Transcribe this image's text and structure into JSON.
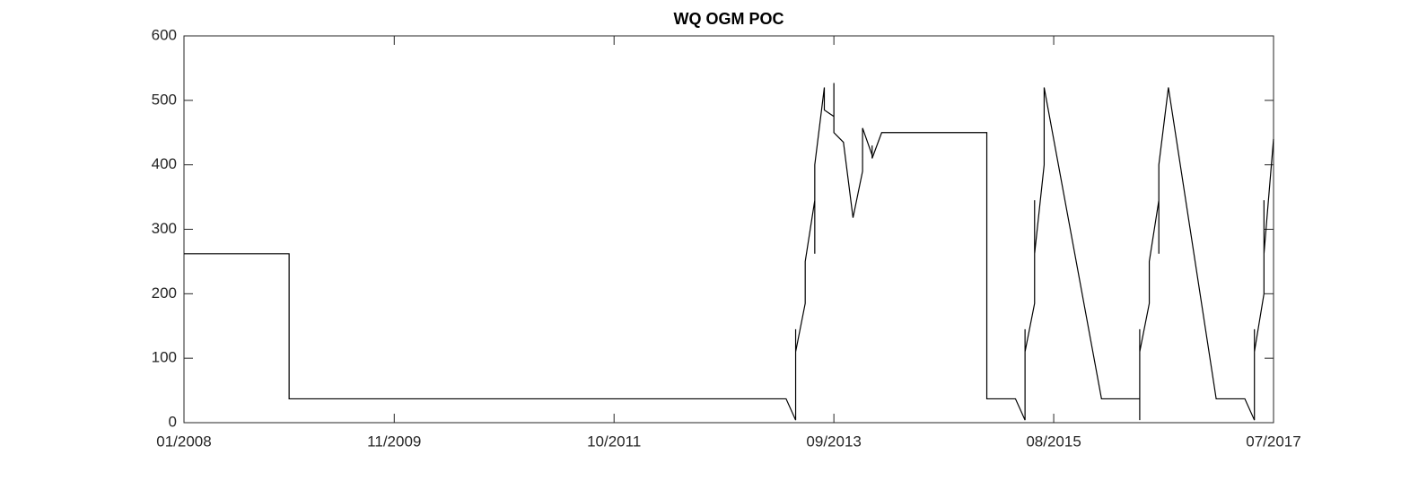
{
  "chart_data": {
    "type": "line",
    "title": "WQ OGM POC",
    "x": [
      "2008-01",
      "2008-12",
      "2008-12",
      "2013-04",
      "2013-05",
      "2013-05",
      "2013-05",
      "2013-06",
      "2013-06",
      "2013-06",
      "2013-07",
      "2013-07",
      "2013-07",
      "2013-08",
      "2013-08",
      "2013-09",
      "2013-09",
      "2013-09",
      "2013-10",
      "2013-11",
      "2013-12",
      "2013-12",
      "2014-01",
      "2014-01",
      "2014-01",
      "2014-02",
      "2015-01",
      "2015-01",
      "2015-04",
      "2015-05",
      "2015-05",
      "2015-05",
      "2015-06",
      "2015-06",
      "2015-06",
      "2015-06",
      "2015-07",
      "2015-07",
      "2016-01",
      "2016-05",
      "2016-05",
      "2016-05",
      "2016-05",
      "2016-06",
      "2016-06",
      "2016-07",
      "2016-07",
      "2016-07",
      "2016-08",
      "2017-01",
      "2017-04",
      "2017-05",
      "2017-05",
      "2017-05",
      "2017-06",
      "2017-06",
      "2017-06",
      "2017-07"
    ],
    "series": [
      {
        "color": "#000000",
        "values": [
          262,
          262,
          37,
          37,
          4,
          145,
          110,
          185,
          210,
          250,
          345,
          262,
          400,
          520,
          485,
          475,
          527,
          450,
          435,
          318,
          390,
          457,
          415,
          430,
          410,
          450,
          450,
          37,
          37,
          4,
          145,
          110,
          185,
          210,
          345,
          262,
          400,
          520,
          37,
          37,
          4,
          145,
          110,
          185,
          250,
          345,
          262,
          400,
          520,
          37,
          37,
          4,
          145,
          110,
          200,
          345,
          262,
          440
        ]
      }
    ],
    "xlim": [
      "2008-01",
      "2017-07"
    ],
    "xticks": [
      {
        "value": "2008-01",
        "label": "01/2008"
      },
      {
        "value": "2009-11",
        "label": "11/2009"
      },
      {
        "value": "2011-10",
        "label": "10/2011"
      },
      {
        "value": "2013-09",
        "label": "09/2013"
      },
      {
        "value": "2015-08",
        "label": "08/2015"
      },
      {
        "value": "2017-07",
        "label": "07/2017"
      }
    ],
    "ylim": [
      0,
      600
    ],
    "yticks": [
      0,
      100,
      200,
      300,
      400,
      500,
      600
    ]
  }
}
